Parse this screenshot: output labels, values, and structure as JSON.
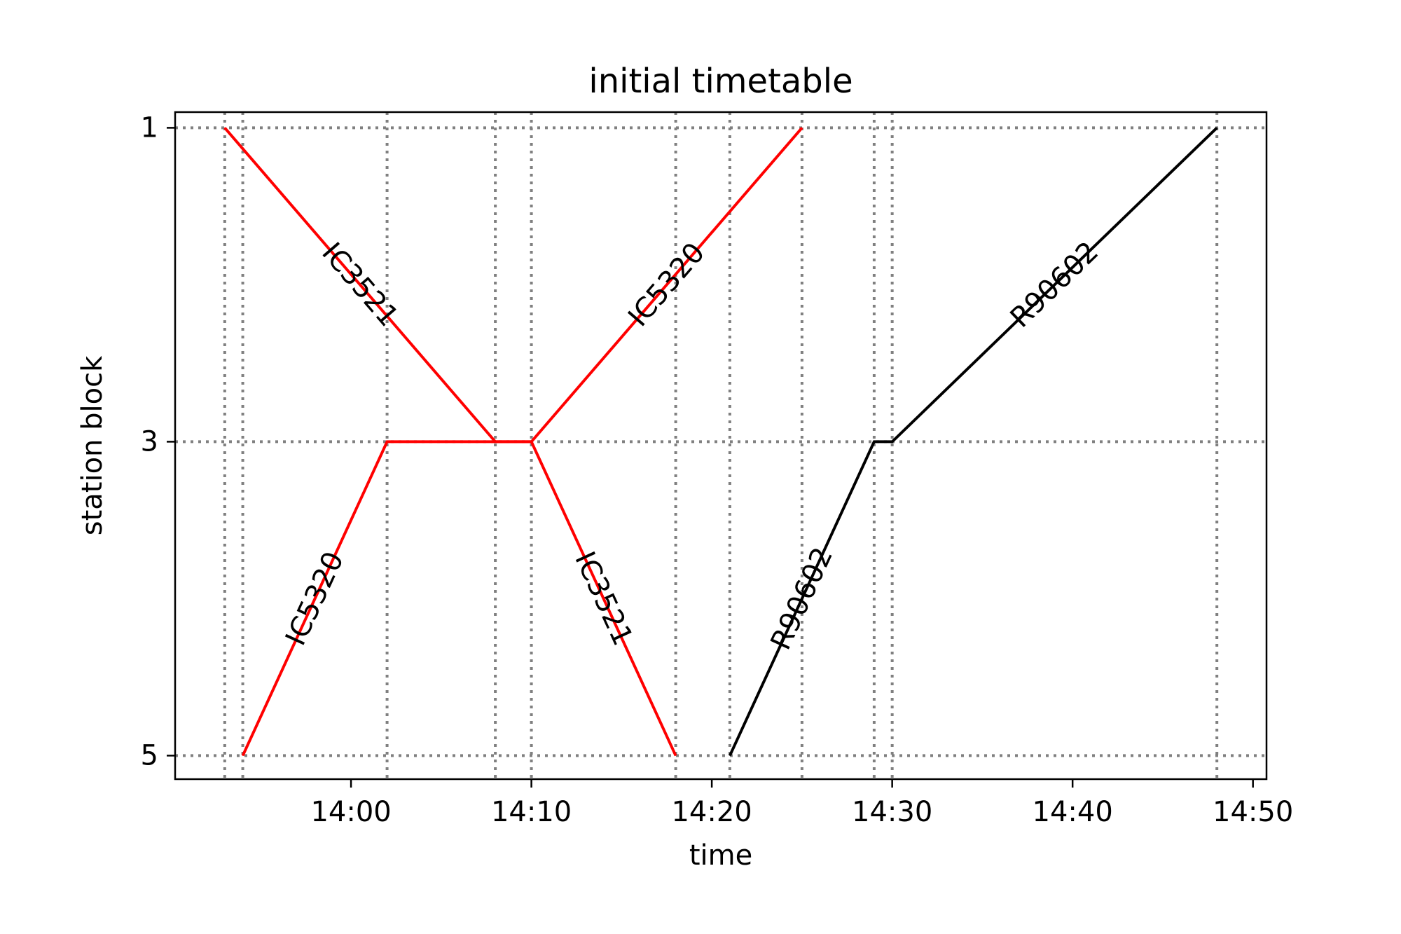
{
  "chart_data": {
    "type": "line",
    "title": "initial timetable",
    "xlabel": "time",
    "ylabel": "station block",
    "x_unit": "clock time (HH:MM)",
    "xlim": [
      "13:50:15",
      "14:50:45"
    ],
    "ylim": [
      5.15,
      0.9
    ],
    "y_inverted": true,
    "grid": "dotted grey lines at each event time and each labeled station block",
    "x_ticks": [
      "14:00",
      "14:10",
      "14:20",
      "14:30",
      "14:40",
      "14:50"
    ],
    "y_ticks": [
      1,
      3,
      5
    ],
    "vertical_gridlines": [
      "13:53",
      "13:54",
      "14:02",
      "14:08",
      "14:10",
      "14:18",
      "14:21",
      "14:25",
      "14:29",
      "14:30",
      "14:48"
    ],
    "horizontal_gridlines": [
      1,
      3,
      5
    ],
    "series": [
      {
        "name": "IC3521",
        "color": "#ff0000",
        "points": [
          {
            "x": "13:53",
            "y": 1
          },
          {
            "x": "14:08",
            "y": 3
          },
          {
            "x": "14:10",
            "y": 3
          },
          {
            "x": "14:18",
            "y": 5
          }
        ],
        "labels": [
          {
            "text": "IC3521",
            "segment": 0
          },
          {
            "text": "IC3521",
            "segment": 2
          }
        ]
      },
      {
        "name": "IC5320",
        "color": "#ff0000",
        "points": [
          {
            "x": "13:54",
            "y": 5
          },
          {
            "x": "14:02",
            "y": 3
          },
          {
            "x": "14:10",
            "y": 3
          },
          {
            "x": "14:25",
            "y": 1
          }
        ],
        "labels": [
          {
            "text": "IC5320",
            "segment": 0
          },
          {
            "text": "IC5320",
            "segment": 2
          }
        ]
      },
      {
        "name": "R90602",
        "color": "#000000",
        "points": [
          {
            "x": "14:21",
            "y": 5
          },
          {
            "x": "14:29",
            "y": 3
          },
          {
            "x": "14:30",
            "y": 3
          },
          {
            "x": "14:48",
            "y": 1
          }
        ],
        "labels": [
          {
            "text": "R90602",
            "segment": 0
          },
          {
            "text": "R90602",
            "segment": 2
          }
        ]
      }
    ]
  }
}
